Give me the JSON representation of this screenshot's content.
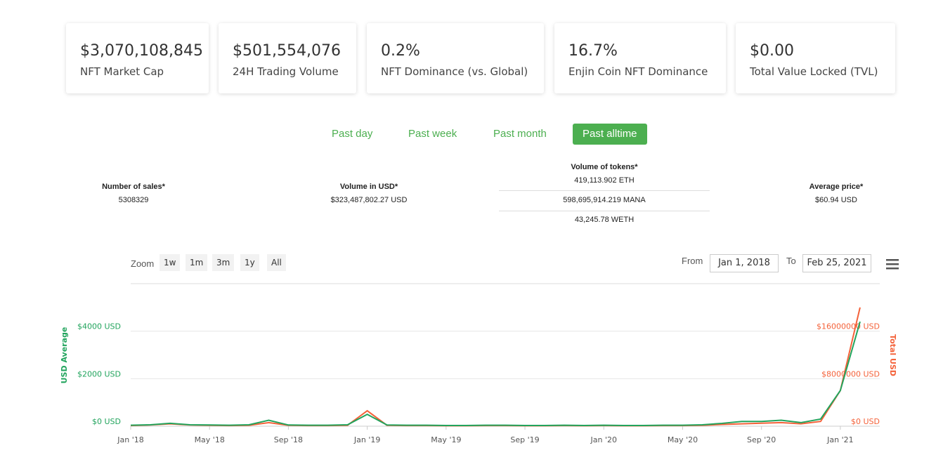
{
  "stats": [
    {
      "value": "$3,070,108,845",
      "label": "NFT Market Cap"
    },
    {
      "value": "$501,554,076",
      "label": "24H Trading Volume"
    },
    {
      "value": "0.2%",
      "label": "NFT Dominance (vs. Global)"
    },
    {
      "value": "16.7%",
      "label": "Enjin Coin NFT Dominance"
    },
    {
      "value": "$0.00",
      "label": "Total Value Locked (TVL)"
    }
  ],
  "tabs": {
    "items": [
      "Past day",
      "Past week",
      "Past month",
      "Past alltime"
    ],
    "active": 3
  },
  "summary": {
    "sales": {
      "label": "Number of sales*",
      "value": "5308329"
    },
    "volume_usd": {
      "label": "Volume in USD*",
      "value": "$323,487,802.27 USD"
    },
    "volume_tokens": {
      "label": "Volume of tokens*",
      "rows": [
        "419,113.902 ETH",
        "598,695,914.219 MANA",
        "43,245.78 WETH"
      ]
    },
    "average_price": {
      "label": "Average price*",
      "value": "$60.94 USD"
    }
  },
  "chart_toolbar": {
    "zoom_label": "Zoom",
    "zoom_options": [
      "1w",
      "1m",
      "3m",
      "1y",
      "All"
    ],
    "from_label": "From",
    "from": "Jan 1, 2018",
    "to_label": "To",
    "to": "Feb 25, 2021"
  },
  "chart_data": {
    "type": "line",
    "ylabel": "USD Average",
    "y2label": "Total USD",
    "x": [
      "2018-01",
      "2018-02",
      "2018-03",
      "2018-04",
      "2018-05",
      "2018-06",
      "2018-07",
      "2018-08",
      "2018-09",
      "2018-10",
      "2018-11",
      "2018-12",
      "2019-01",
      "2019-02",
      "2019-03",
      "2019-04",
      "2019-05",
      "2019-06",
      "2019-07",
      "2019-08",
      "2019-09",
      "2019-10",
      "2019-11",
      "2019-12",
      "2020-01",
      "2020-02",
      "2020-03",
      "2020-04",
      "2020-05",
      "2020-06",
      "2020-07",
      "2020-08",
      "2020-09",
      "2020-10",
      "2020-11",
      "2020-12",
      "2021-01",
      "2021-02"
    ],
    "xlim": [
      "2018-01",
      "2021-03"
    ],
    "xticks": [
      {
        "value": "2018-01",
        "label": "Jan '18"
      },
      {
        "value": "2018-05",
        "label": "May '18"
      },
      {
        "value": "2018-09",
        "label": "Sep '18"
      },
      {
        "value": "2019-01",
        "label": "Jan '19"
      },
      {
        "value": "2019-05",
        "label": "May '19"
      },
      {
        "value": "2019-09",
        "label": "Sep '19"
      },
      {
        "value": "2020-01",
        "label": "Jan '20"
      },
      {
        "value": "2020-05",
        "label": "May '20"
      },
      {
        "value": "2020-09",
        "label": "Sep '20"
      },
      {
        "value": "2021-01",
        "label": "Jan '21"
      }
    ],
    "ylim": [
      0,
      6000
    ],
    "yticks": [
      {
        "value": 0,
        "label": "$0 USD"
      },
      {
        "value": 2000,
        "label": "$2000 USD"
      },
      {
        "value": 4000,
        "label": "$4000 USD"
      }
    ],
    "y2lim": [
      0,
      24000000
    ],
    "y2ticks": [
      {
        "value": 0,
        "label": "$0 USD"
      },
      {
        "value": 8000000,
        "label": "$8000000 USD"
      },
      {
        "value": 16000000,
        "label": "$16000000 USD"
      }
    ],
    "grid": true,
    "series": [
      {
        "color": "#f4623a",
        "axis": "y2",
        "values": [
          100000,
          200000,
          400000,
          200000,
          150000,
          100000,
          150000,
          600000,
          150000,
          100000,
          100000,
          150000,
          2600000,
          150000,
          100000,
          100000,
          80000,
          80000,
          100000,
          100000,
          80000,
          80000,
          100000,
          80000,
          100000,
          80000,
          80000,
          100000,
          100000,
          150000,
          300000,
          400000,
          500000,
          600000,
          400000,
          800000,
          6000000,
          20000000
        ]
      },
      {
        "color": "#22a45d",
        "axis": "y",
        "values": [
          40,
          60,
          120,
          60,
          50,
          40,
          60,
          250,
          50,
          40,
          40,
          60,
          500,
          50,
          40,
          40,
          30,
          30,
          40,
          40,
          30,
          30,
          40,
          30,
          40,
          30,
          30,
          40,
          40,
          60,
          120,
          200,
          200,
          250,
          150,
          300,
          1500,
          4400
        ]
      }
    ]
  }
}
